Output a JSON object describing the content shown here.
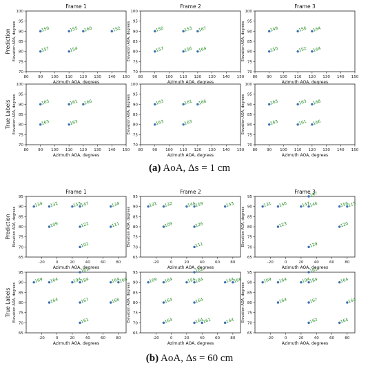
{
  "figure": {
    "caption_a": {
      "label": "(a)",
      "text": "AoA, Δs = 1 cm"
    },
    "caption_b": {
      "label": "(b)",
      "text": "AoA, Δs = 60 cm"
    },
    "colors": {
      "point": "#3a6fb0",
      "label": "#1f8a1f"
    }
  },
  "chart_data": [
    {
      "type": "scatter",
      "group": "a",
      "title": "Frame 1",
      "ylabel": "Prediction",
      "xlabel": "Azimuth AOA, degrees",
      "yaxis_label": "Elevation AOA, degrees",
      "xlim": [
        80,
        150
      ],
      "ylim": [
        70,
        100
      ],
      "xticks": [
        80,
        90,
        100,
        110,
        120,
        130,
        140,
        150
      ],
      "yticks": [
        70,
        75,
        80,
        85,
        90,
        95,
        100
      ],
      "points": [
        {
          "x": 90,
          "y": 90,
          "label": "150"
        },
        {
          "x": 110,
          "y": 90,
          "label": "155"
        },
        {
          "x": 120,
          "y": 90,
          "label": "160"
        },
        {
          "x": 140,
          "y": 90,
          "label": "152"
        },
        {
          "x": 90,
          "y": 80,
          "label": "157"
        },
        {
          "x": 110,
          "y": 80,
          "label": "154"
        }
      ]
    },
    {
      "type": "scatter",
      "group": "a",
      "title": "Frame 2",
      "ylabel": "",
      "xlabel": "Azimuth AOA, degrees",
      "yaxis_label": "Elevation AOA, degrees",
      "xlim": [
        80,
        150
      ],
      "ylim": [
        70,
        100
      ],
      "xticks": [
        80,
        90,
        100,
        110,
        120,
        130,
        140,
        150
      ],
      "yticks": [
        70,
        75,
        80,
        85,
        90,
        95,
        100
      ],
      "points": [
        {
          "x": 90,
          "y": 90,
          "label": "150"
        },
        {
          "x": 110,
          "y": 90,
          "label": "153"
        },
        {
          "x": 120,
          "y": 90,
          "label": "167"
        },
        {
          "x": 90,
          "y": 80,
          "label": "157"
        },
        {
          "x": 110,
          "y": 80,
          "label": "156"
        },
        {
          "x": 120,
          "y": 80,
          "label": "164"
        }
      ]
    },
    {
      "type": "scatter",
      "group": "a",
      "title": "Frame 3",
      "ylabel": "",
      "xlabel": "Azimuth AOA, degrees",
      "yaxis_label": "Elevation AOA, degrees",
      "xlim": [
        80,
        150
      ],
      "ylim": [
        70,
        100
      ],
      "xticks": [
        80,
        90,
        100,
        110,
        120,
        130,
        140,
        150
      ],
      "yticks": [
        70,
        75,
        80,
        85,
        90,
        95,
        100
      ],
      "points": [
        {
          "x": 90,
          "y": 90,
          "label": "149"
        },
        {
          "x": 110,
          "y": 90,
          "label": "156"
        },
        {
          "x": 120,
          "y": 90,
          "label": "164"
        },
        {
          "x": 90,
          "y": 80,
          "label": "150"
        },
        {
          "x": 110,
          "y": 80,
          "label": "152"
        },
        {
          "x": 120,
          "y": 80,
          "label": "164"
        }
      ]
    },
    {
      "type": "scatter",
      "group": "a",
      "title": "",
      "ylabel": "True Labels",
      "xlabel": "Azimuth AOA, degrees",
      "yaxis_label": "Elevation AOA, degrees",
      "xlim": [
        80,
        150
      ],
      "ylim": [
        70,
        100
      ],
      "xticks": [
        80,
        90,
        100,
        110,
        120,
        130,
        140,
        150
      ],
      "yticks": [
        70,
        75,
        80,
        85,
        90,
        95,
        100
      ],
      "points": [
        {
          "x": 90,
          "y": 90,
          "label": "163"
        },
        {
          "x": 110,
          "y": 90,
          "label": "161"
        },
        {
          "x": 120,
          "y": 90,
          "label": "166"
        },
        {
          "x": 90,
          "y": 80,
          "label": "163"
        },
        {
          "x": 110,
          "y": 80,
          "label": "163"
        }
      ]
    },
    {
      "type": "scatter",
      "group": "a",
      "title": "",
      "ylabel": "",
      "xlabel": "Azimuth AOA, degrees",
      "yaxis_label": "Elevation AOA, degrees",
      "xlim": [
        80,
        150
      ],
      "ylim": [
        70,
        100
      ],
      "xticks": [
        80,
        90,
        100,
        110,
        120,
        130,
        140,
        150
      ],
      "yticks": [
        70,
        75,
        80,
        85,
        90,
        95,
        100
      ],
      "points": [
        {
          "x": 90,
          "y": 90,
          "label": "163"
        },
        {
          "x": 110,
          "y": 90,
          "label": "161"
        },
        {
          "x": 120,
          "y": 90,
          "label": "166"
        },
        {
          "x": 90,
          "y": 80,
          "label": "163"
        },
        {
          "x": 110,
          "y": 80,
          "label": "163"
        }
      ]
    },
    {
      "type": "scatter",
      "group": "a",
      "title": "",
      "ylabel": "",
      "xlabel": "Azimuth AOA, degrees",
      "yaxis_label": "Elevation AOA, degrees",
      "xlim": [
        80,
        150
      ],
      "ylim": [
        70,
        100
      ],
      "xticks": [
        80,
        90,
        100,
        110,
        120,
        130,
        140,
        150
      ],
      "yticks": [
        70,
        75,
        80,
        85,
        90,
        95,
        100
      ],
      "points": [
        {
          "x": 90,
          "y": 90,
          "label": "163"
        },
        {
          "x": 110,
          "y": 90,
          "label": "163"
        },
        {
          "x": 120,
          "y": 90,
          "label": "168"
        },
        {
          "x": 90,
          "y": 80,
          "label": "163"
        },
        {
          "x": 110,
          "y": 80,
          "label": "161"
        },
        {
          "x": 120,
          "y": 80,
          "label": "166"
        }
      ]
    },
    {
      "type": "scatter",
      "group": "b",
      "title": "Frame 1",
      "ylabel": "Prediction",
      "xlabel": "Azimuth AOA, degrees",
      "yaxis_label": "Elevation AOA, degrees",
      "xlim": [
        -40,
        90
      ],
      "ylim": [
        65,
        95
      ],
      "xticks": [
        -20,
        0,
        20,
        40,
        60,
        80
      ],
      "yticks": [
        65,
        70,
        75,
        80,
        85,
        90,
        95
      ],
      "points": [
        {
          "x": -30,
          "y": 90,
          "label": "134"
        },
        {
          "x": -10,
          "y": 90,
          "label": "132"
        },
        {
          "x": 20,
          "y": 90,
          "label": "153"
        },
        {
          "x": 30,
          "y": 90,
          "label": "147"
        },
        {
          "x": 70,
          "y": 90,
          "label": "134"
        },
        {
          "x": -10,
          "y": 80,
          "label": "109"
        },
        {
          "x": 30,
          "y": 80,
          "label": "122"
        },
        {
          "x": 70,
          "y": 80,
          "label": "111"
        },
        {
          "x": 30,
          "y": 70,
          "label": "102"
        }
      ]
    },
    {
      "type": "scatter",
      "group": "b",
      "title": "Frame 2",
      "ylabel": "",
      "xlabel": "Azimuth AOA, degrees",
      "yaxis_label": "Elevation AOA, degrees",
      "xlim": [
        -40,
        90
      ],
      "ylim": [
        65,
        95
      ],
      "xticks": [
        -20,
        0,
        20,
        40,
        60,
        80
      ],
      "yticks": [
        65,
        70,
        75,
        80,
        85,
        90,
        95
      ],
      "points": [
        {
          "x": -30,
          "y": 90,
          "label": "131"
        },
        {
          "x": -10,
          "y": 90,
          "label": "132"
        },
        {
          "x": 20,
          "y": 90,
          "label": "144"
        },
        {
          "x": 30,
          "y": 90,
          "label": "159"
        },
        {
          "x": 70,
          "y": 90,
          "label": "143"
        },
        {
          "x": -10,
          "y": 80,
          "label": "109"
        },
        {
          "x": 30,
          "y": 80,
          "label": "126"
        },
        {
          "x": 30,
          "y": 70,
          "label": "111"
        }
      ]
    },
    {
      "type": "scatter",
      "group": "b",
      "title": "Frame 3",
      "ylabel": "",
      "xlabel": "Azimuth AOA, degrees",
      "yaxis_label": "Elevation AOA, degrees",
      "xlim": [
        -40,
        90
      ],
      "ylim": [
        65,
        95
      ],
      "xticks": [
        -20,
        0,
        20,
        40,
        60,
        80
      ],
      "yticks": [
        65,
        70,
        75,
        80,
        85,
        90,
        95
      ],
      "points": [
        {
          "x": 30,
          "y": 95,
          "label": "147"
        },
        {
          "x": -30,
          "y": 90,
          "label": "131"
        },
        {
          "x": -10,
          "y": 90,
          "label": "140"
        },
        {
          "x": 20,
          "y": 90,
          "label": "147"
        },
        {
          "x": 30,
          "y": 90,
          "label": "146"
        },
        {
          "x": 70,
          "y": 90,
          "label": "156"
        },
        {
          "x": 80,
          "y": 90,
          "label": "115"
        },
        {
          "x": -10,
          "y": 80,
          "label": "123"
        },
        {
          "x": 70,
          "y": 80,
          "label": "120"
        },
        {
          "x": 30,
          "y": 70,
          "label": "129"
        }
      ]
    },
    {
      "type": "scatter",
      "group": "b",
      "title": "",
      "ylabel": "True Labels",
      "xlabel": "Azimuth AOA, degrees",
      "yaxis_label": "Elevation AOA, degrees",
      "xlim": [
        -40,
        90
      ],
      "ylim": [
        65,
        95
      ],
      "xticks": [
        -20,
        0,
        20,
        40,
        60,
        80
      ],
      "yticks": [
        65,
        70,
        75,
        80,
        85,
        90,
        95
      ],
      "points": [
        {
          "x": 30,
          "y": 95,
          "label": "161"
        },
        {
          "x": -30,
          "y": 90,
          "label": "169"
        },
        {
          "x": -10,
          "y": 90,
          "label": "164"
        },
        {
          "x": 20,
          "y": 90,
          "label": "194"
        },
        {
          "x": 30,
          "y": 90,
          "label": "184"
        },
        {
          "x": 70,
          "y": 90,
          "label": "164"
        },
        {
          "x": 80,
          "y": 90,
          "label": "166"
        },
        {
          "x": -10,
          "y": 80,
          "label": "164"
        },
        {
          "x": 30,
          "y": 80,
          "label": "167"
        },
        {
          "x": 70,
          "y": 80,
          "label": "166"
        },
        {
          "x": 30,
          "y": 70,
          "label": "161"
        }
      ]
    },
    {
      "type": "scatter",
      "group": "b",
      "title": "",
      "ylabel": "",
      "xlabel": "Azimuth AOA, degrees",
      "yaxis_label": "Elevation AOA, degrees",
      "xlim": [
        -40,
        90
      ],
      "ylim": [
        65,
        95
      ],
      "xticks": [
        -20,
        0,
        20,
        40,
        60,
        80
      ],
      "yticks": [
        65,
        70,
        75,
        80,
        85,
        90,
        95
      ],
      "points": [
        {
          "x": 30,
          "y": 95,
          "label": "161"
        },
        {
          "x": -30,
          "y": 90,
          "label": "169"
        },
        {
          "x": -10,
          "y": 90,
          "label": "164"
        },
        {
          "x": 20,
          "y": 90,
          "label": "194"
        },
        {
          "x": 30,
          "y": 90,
          "label": "184"
        },
        {
          "x": 70,
          "y": 90,
          "label": "164"
        },
        {
          "x": 80,
          "y": 90,
          "label": "166"
        },
        {
          "x": -10,
          "y": 80,
          "label": "164"
        },
        {
          "x": 30,
          "y": 80,
          "label": "164"
        },
        {
          "x": -10,
          "y": 70,
          "label": "164"
        },
        {
          "x": 30,
          "y": 70,
          "label": "164"
        },
        {
          "x": 40,
          "y": 70,
          "label": "161"
        },
        {
          "x": 70,
          "y": 70,
          "label": "164"
        }
      ]
    },
    {
      "type": "scatter",
      "group": "b",
      "title": "",
      "ylabel": "",
      "xlabel": "Azimuth AOA, degrees",
      "yaxis_label": "Elevation AOA, degrees",
      "xlim": [
        -40,
        90
      ],
      "ylim": [
        65,
        95
      ],
      "xticks": [
        -20,
        0,
        20,
        40,
        60,
        80
      ],
      "yticks": [
        65,
        70,
        75,
        80,
        85,
        90,
        95
      ],
      "points": [
        {
          "x": 30,
          "y": 95,
          "label": "161"
        },
        {
          "x": -30,
          "y": 90,
          "label": "169"
        },
        {
          "x": -10,
          "y": 90,
          "label": "164"
        },
        {
          "x": 20,
          "y": 90,
          "label": "194"
        },
        {
          "x": 30,
          "y": 90,
          "label": "184"
        },
        {
          "x": 70,
          "y": 90,
          "label": "164"
        },
        {
          "x": -10,
          "y": 80,
          "label": "164"
        },
        {
          "x": 30,
          "y": 80,
          "label": "167"
        },
        {
          "x": 80,
          "y": 80,
          "label": "164"
        },
        {
          "x": 30,
          "y": 70,
          "label": "162"
        },
        {
          "x": 70,
          "y": 70,
          "label": "164"
        }
      ]
    }
  ]
}
